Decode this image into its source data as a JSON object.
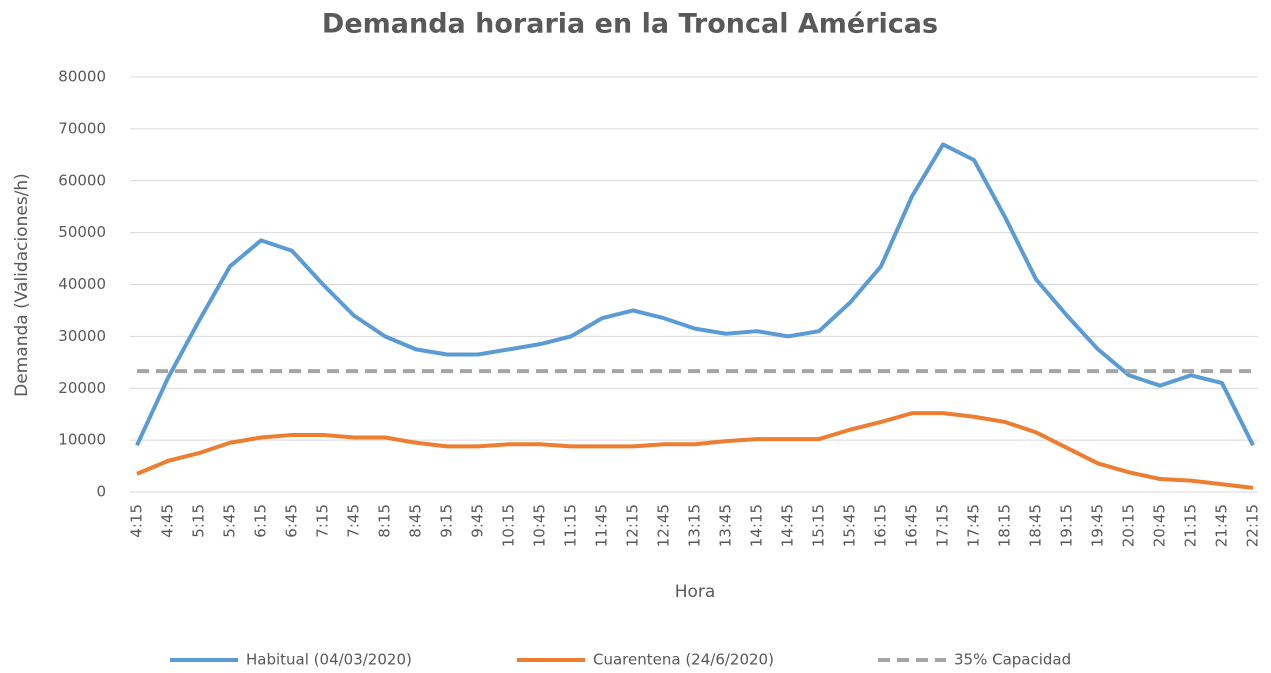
{
  "chart_data": {
    "type": "line",
    "title": "Demanda horaria en la Troncal Américas",
    "x_label": "Hora",
    "y_label": "Demanda (Validaciones/h)",
    "categories": [
      "4:15",
      "4:45",
      "5:15",
      "5:45",
      "6:15",
      "6:45",
      "7:15",
      "7:45",
      "8:15",
      "8:45",
      "9:15",
      "9:45",
      "10:15",
      "10:45",
      "11:15",
      "11:45",
      "12:15",
      "12:45",
      "13:15",
      "13:45",
      "14:15",
      "14:45",
      "15:15",
      "15:45",
      "16:15",
      "16:45",
      "17:15",
      "17:45",
      "18:15",
      "18:45",
      "19:15",
      "19:45",
      "20:15",
      "20:45",
      "21:15",
      "21:45",
      "22:15"
    ],
    "series": [
      {
        "name": "Habitual (04/03/2020)",
        "color": "#5b9bd5",
        "dashed": false,
        "values": [
          9000,
          22000,
          33000,
          43500,
          48500,
          46500,
          40000,
          34000,
          30000,
          27500,
          26500,
          26500,
          27500,
          28500,
          30000,
          33500,
          35000,
          33500,
          31500,
          30500,
          31000,
          30000,
          31000,
          36500,
          43500,
          57000,
          67000,
          64000,
          53000,
          41000,
          34000,
          27500,
          22500,
          20500,
          22500,
          21000,
          9000
        ]
      },
      {
        "name": "Cuarentena (24/6/2020)",
        "color": "#ed7d31",
        "dashed": false,
        "values": [
          3500,
          6000,
          7500,
          9500,
          10500,
          11000,
          11000,
          10500,
          10500,
          9500,
          8800,
          8800,
          9200,
          9200,
          8800,
          8800,
          8800,
          9200,
          9200,
          9800,
          10200,
          10200,
          10200,
          12000,
          13500,
          15200,
          15200,
          14500,
          13500,
          11500,
          8500,
          5500,
          3800,
          2500,
          2200,
          1500,
          800
        ]
      },
      {
        "name": "35% Capacidad",
        "color": "#a5a5a5",
        "dashed": true,
        "values": [
          23300,
          23300,
          23300,
          23300,
          23300,
          23300,
          23300,
          23300,
          23300,
          23300,
          23300,
          23300,
          23300,
          23300,
          23300,
          23300,
          23300,
          23300,
          23300,
          23300,
          23300,
          23300,
          23300,
          23300,
          23300,
          23300,
          23300,
          23300,
          23300,
          23300,
          23300,
          23300,
          23300,
          23300,
          23300,
          23300,
          23300
        ]
      }
    ],
    "ylim": [
      0,
      80000
    ],
    "yticks": [
      0,
      10000,
      20000,
      30000,
      40000,
      50000,
      60000,
      70000,
      80000
    ],
    "grid": true,
    "legend": "bottom"
  }
}
